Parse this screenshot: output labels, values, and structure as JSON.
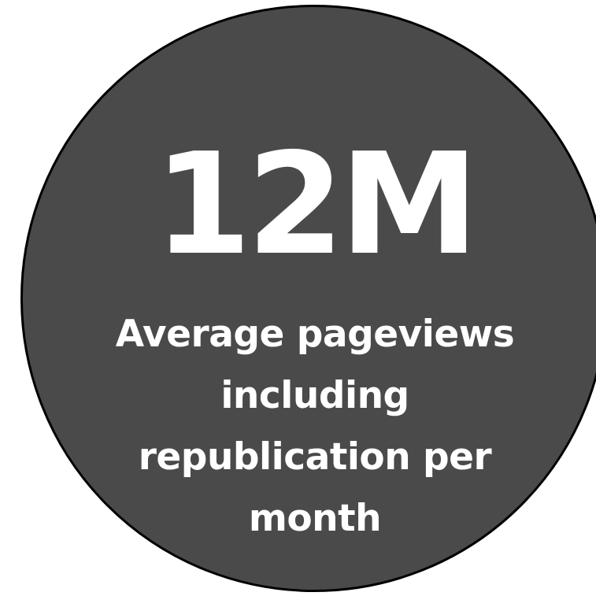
{
  "stat": {
    "value": "12M",
    "caption_lines": [
      "Average pageviews",
      "including",
      "republication per",
      "month"
    ]
  },
  "colors": {
    "circle_fill": "#4a4a4b",
    "circle_border": "#000000",
    "text": "#ffffff",
    "background": "#ffffff"
  }
}
